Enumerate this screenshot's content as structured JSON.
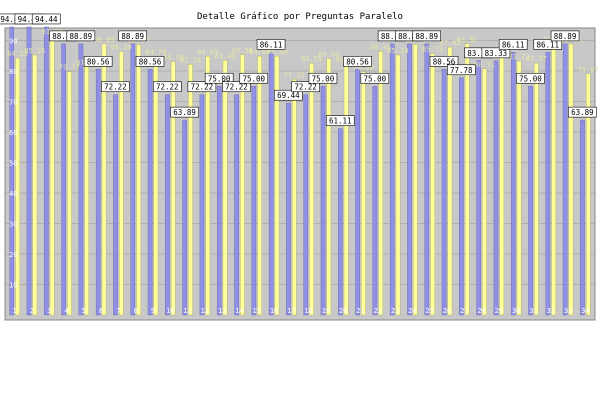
{
  "chart_data": {
    "type": "bar",
    "title": "Detalle Gráfico por Preguntas Paralelo",
    "categories": [
      "1",
      "2",
      "3",
      "4",
      "5",
      "6",
      "7",
      "8",
      "9",
      "10",
      "11",
      "12",
      "13",
      "14",
      "15",
      "16",
      "17",
      "18",
      "19",
      "20",
      "21",
      "22",
      "23",
      "24",
      "25",
      "26",
      "27",
      "28",
      "29",
      "30",
      "31",
      "32",
      "33",
      "34"
    ],
    "ylim": [
      0,
      100
    ],
    "yticks": [
      10,
      20,
      30,
      40,
      50,
      60,
      70,
      80,
      90
    ],
    "grid": true,
    "legend": "none",
    "series": [
      {
        "color": "#8f8fe6",
        "values": [
          94.44,
          94.44,
          94.44,
          88.89,
          88.89,
          80.56,
          72.22,
          88.89,
          80.56,
          72.22,
          63.89,
          72.22,
          75.0,
          72.22,
          75.0,
          86.11,
          69.44,
          72.22,
          75.0,
          61.11,
          80.56,
          75.0,
          88.89,
          88.89,
          88.89,
          80.56,
          77.78,
          83.33,
          83.33,
          86.11,
          75.0,
          86.11,
          88.89,
          63.89
        ]
      },
      {
        "color": "#ffff99",
        "values": [
          84.25,
          85.25,
          91.55,
          79.77,
          81.55,
          88.89,
          86.39,
          88.67,
          84.79,
          83.1,
          82.18,
          84.8,
          83.49,
          85.3,
          84.86,
          84.86,
          77.25,
          82.55,
          84.09,
          82.5,
          79.8,
          86.45,
          85.24,
          88.72,
          85.72,
          87.82,
          88.92,
          80.71,
          85.57,
          83.23,
          82.57,
          88.89,
          88.85,
          79.07
        ]
      }
    ]
  }
}
